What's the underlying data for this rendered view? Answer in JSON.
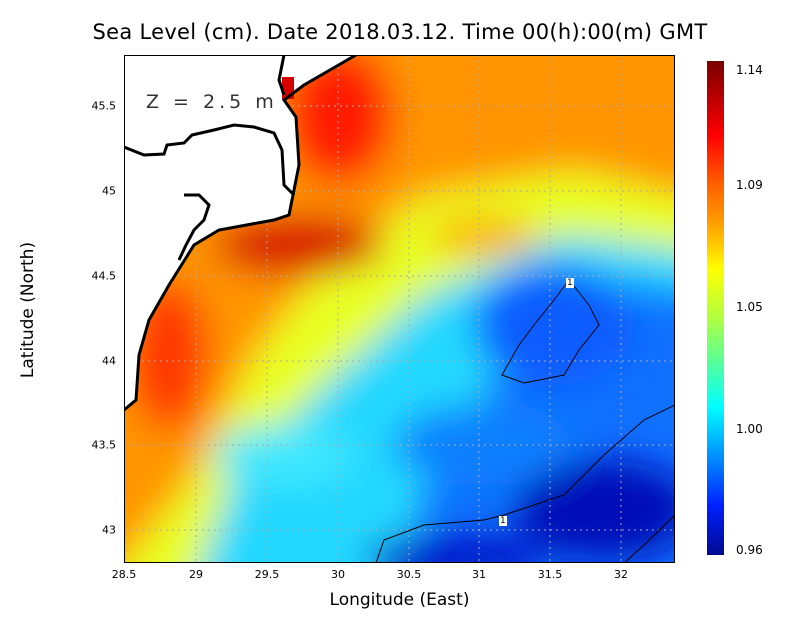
{
  "title": "Sea Level (cm). Date 2018.03.12. Time 00(h):00(m) GMT",
  "depth_label": "Z = 2.5 m",
  "x_axis": {
    "label": "Longitude (East)",
    "ticks": [
      "28.5",
      "29",
      "29.5",
      "30",
      "30.5",
      "31",
      "31.5",
      "32"
    ]
  },
  "y_axis": {
    "label": "Latitude (North)",
    "ticks": [
      "45.5",
      "45",
      "44.5",
      "44",
      "43.5",
      "43"
    ]
  },
  "colorbar": {
    "ticks": [
      "1.14",
      "1.09",
      "1.05",
      "1.00",
      "0.96"
    ],
    "min": 0.96,
    "max": 1.14
  },
  "contours": {
    "label": "1",
    "label2": "1"
  },
  "colors": {
    "high": "#7a0000",
    "low": "#000a90",
    "mid": "#00ffff"
  }
}
